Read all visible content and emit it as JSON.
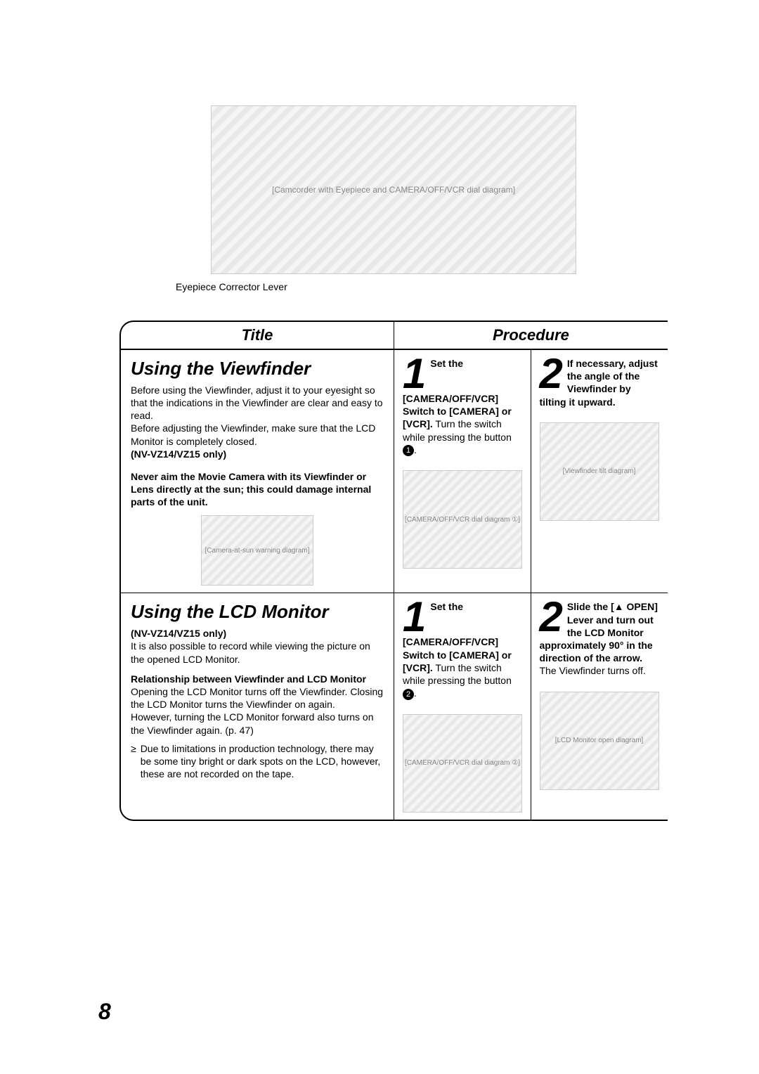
{
  "top": {
    "diagram_label": "[Camcorder with Eyepiece and CAMERA/OFF/VCR dial diagram]",
    "eyepiece_label": "Eyepiece Corrector Lever"
  },
  "headers": {
    "title": "Title",
    "procedure": "Procedure"
  },
  "section1": {
    "heading": "Using the Viewfinder",
    "intro": "Before using the Viewfinder, adjust it to your eyesight so that the indications in the Viewfinder are clear and easy to read.",
    "intro2": "Before adjusting the Viewfinder, make sure that the LCD Monitor is completely closed.",
    "model_note": "(NV-VZ14/VZ15 only)",
    "warning": "Never aim the Movie Camera with its Viewfinder or Lens directly at the sun; this could damage internal parts of the unit.",
    "warning_diagram": "[Camera-at-sun warning diagram]",
    "step1": {
      "num": "1",
      "bold": "Set the [CAMERA/OFF/VCR] Switch to [CAMERA] or [VCR].",
      "text": "Turn the switch while pressing the button ",
      "circled": "1",
      "period": ".",
      "diagram": "[CAMERA/OFF/VCR dial diagram ①]"
    },
    "step2": {
      "num": "2",
      "bold": "If necessary, adjust the angle of the Viewfinder by tilting it upward.",
      "diagram": "[Viewfinder tilt diagram]"
    }
  },
  "section2": {
    "heading": "Using the LCD Monitor",
    "model_note": "(NV-VZ14/VZ15 only)",
    "intro": "It is also possible to record while viewing the picture on the opened LCD Monitor.",
    "sub_heading": "Relationship between Viewfinder and LCD Monitor",
    "rel1": "Opening the LCD Monitor turns off the Viewfinder. Closing the LCD Monitor turns the Viewfinder on again.",
    "rel2": "However, turning the LCD Monitor forward also turns on the Viewfinder again. (p. 47)",
    "bullet": "Due to limitations in production technology, there may be some tiny bright or dark spots on the LCD, however, these are not recorded on the tape.",
    "step1": {
      "num": "1",
      "bold": "Set the [CAMERA/OFF/VCR] Switch to [CAMERA] or [VCR].",
      "text": "Turn the switch while pressing the button ",
      "circled": "2",
      "period": ".",
      "diagram": "[CAMERA/OFF/VCR dial diagram ②]"
    },
    "step2": {
      "num": "2",
      "bold": "Slide the [▲ OPEN] Lever and turn out the LCD Monitor approximately 90° in the direction of the arrow.",
      "text": "The Viewfinder turns off.",
      "diagram": "[LCD Monitor open diagram]"
    }
  },
  "page_number": "8"
}
